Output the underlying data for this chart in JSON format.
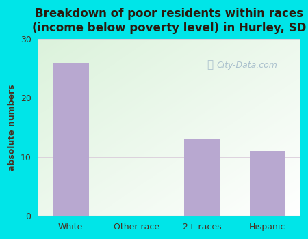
{
  "categories": [
    "White",
    "Other race",
    "2+ races",
    "Hispanic"
  ],
  "values": [
    26,
    0,
    13,
    11
  ],
  "bar_color": "#b8a8d0",
  "title": "Breakdown of poor residents within races\n(income below poverty level) in Hurley, SD",
  "ylabel": "absolute numbers",
  "ylim": [
    0,
    30
  ],
  "yticks": [
    0,
    10,
    20,
    30
  ],
  "outer_bg_color": "#00e5e8",
  "plot_bg_color": "#e8f5e8",
  "grid_color": "#d8c8d8",
  "title_color": "#2a1a0e",
  "axis_label_color": "#4a3020",
  "tick_label_color": "#4a3020",
  "watermark_text": "City-Data.com",
  "watermark_color": "#a0b8c8",
  "title_fontsize": 12,
  "ylabel_fontsize": 9,
  "tick_fontsize": 9
}
